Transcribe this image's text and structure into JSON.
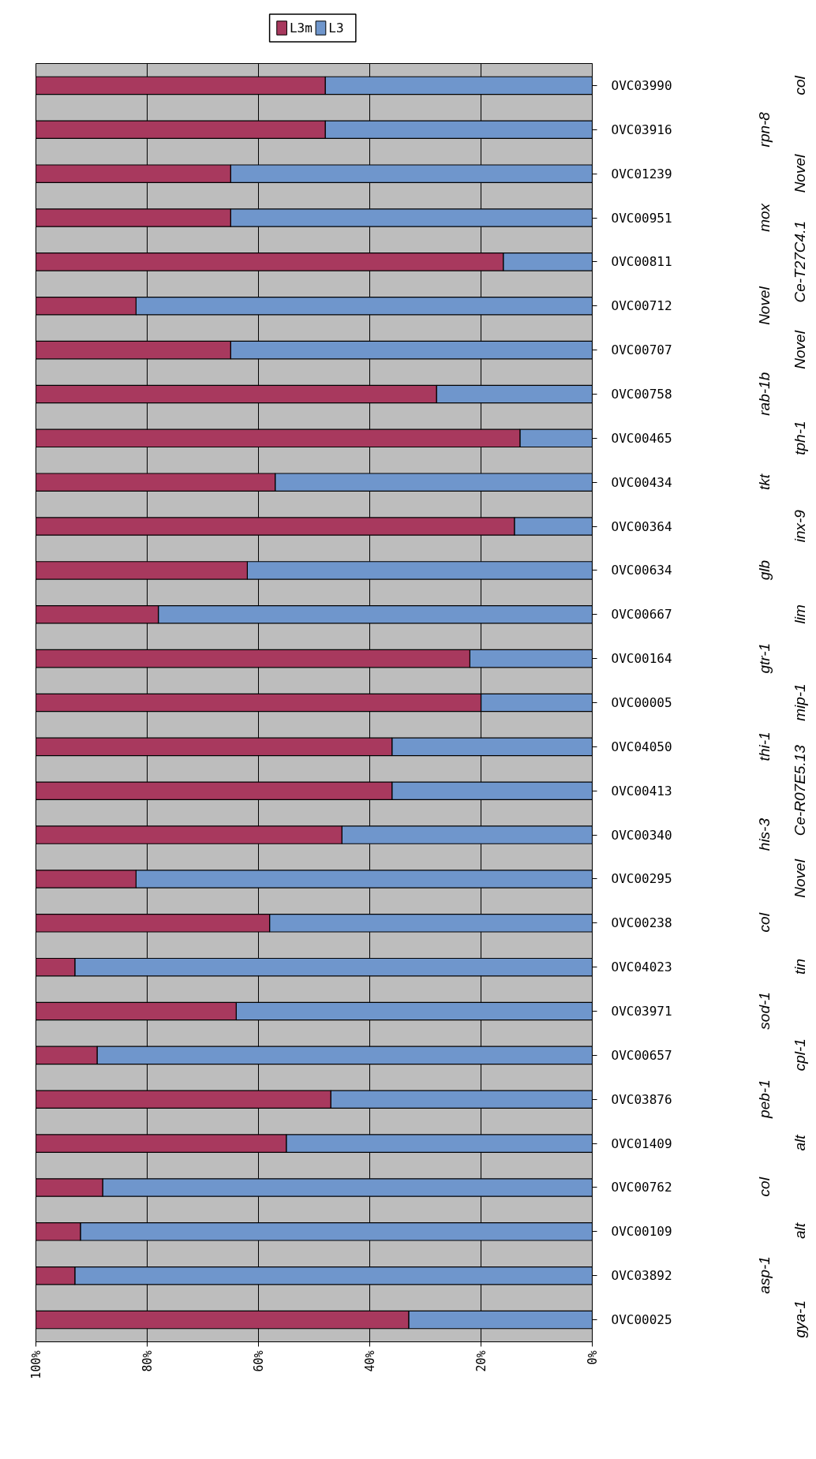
{
  "chart_data": {
    "type": "bar",
    "orientation": "horizontal",
    "stacked": true,
    "categories": [
      "OVC03990",
      "OVC03916",
      "OVC01239",
      "OVC00951",
      "OVC00811",
      "OVC00712",
      "OVC00707",
      "OVC00758",
      "OVC00465",
      "OVC00434",
      "OVC00364",
      "OVC00634",
      "OVC00667",
      "OVC00164",
      "OVC00005",
      "OVC04050",
      "OVC00413",
      "OVC00340",
      "OVC00295",
      "OVC00238",
      "OVC04023",
      "OVC03971",
      "OVC00657",
      "OVC03876",
      "OVC01409",
      "OVC00762",
      "OVC00109",
      "OVC03892",
      "OVC00025"
    ],
    "series": [
      {
        "name": "L3",
        "color": "#6f96cc",
        "values": [
          48,
          48,
          65,
          65,
          16,
          82,
          65,
          28,
          13,
          57,
          14,
          62,
          78,
          22,
          20,
          36,
          36,
          45,
          82,
          58,
          93,
          64,
          89,
          47,
          55,
          88,
          92,
          93,
          33
        ]
      },
      {
        "name": "L3m",
        "color": "#a8395e",
        "values": [
          52,
          52,
          35,
          35,
          84,
          18,
          35,
          72,
          87,
          43,
          86,
          38,
          22,
          78,
          80,
          64,
          64,
          55,
          18,
          42,
          7,
          36,
          11,
          53,
          45,
          12,
          8,
          7,
          67
        ]
      }
    ],
    "xlim": [
      100,
      0
    ],
    "xticks": [
      {
        "value": 100,
        "label": "100%"
      },
      {
        "value": 80,
        "label": "80%"
      },
      {
        "value": 60,
        "label": "60%"
      },
      {
        "value": 40,
        "label": "40%"
      },
      {
        "value": 20,
        "label": "20%"
      },
      {
        "value": 0,
        "label": "0%"
      }
    ],
    "grid": "x",
    "legend": "top",
    "annotations": [
      "col",
      "rpn-8",
      "Novel",
      "mox",
      "Ce-T27C4.1",
      "Novel",
      "Novel",
      "rab-1b",
      "tph-1",
      "tkt",
      "inx-9",
      "glb",
      "lim",
      "gtr-1",
      "mip-1",
      "thi-1",
      "Ce-R07E5.13",
      "his-3",
      "Novel",
      "col",
      "tin",
      "sod-1",
      "cpl-1",
      "peb-1",
      "alt",
      "col",
      "alt",
      "asp-1",
      "gya-1"
    ]
  }
}
